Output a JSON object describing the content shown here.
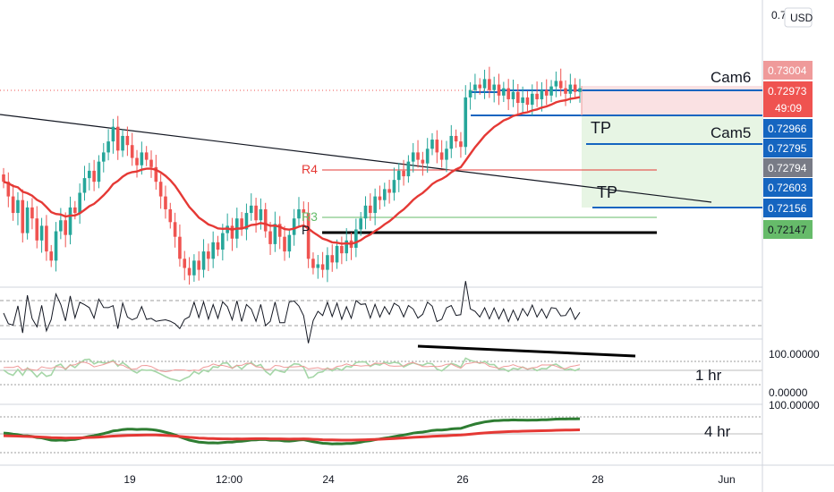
{
  "currency": "USD",
  "top_price_cut": "0.7",
  "chart_data": {
    "type": "line",
    "title": "",
    "x_ticks": [
      "19",
      "12:00",
      "24",
      "26",
      "28",
      "Jun"
    ],
    "price_labels": [
      {
        "value": "0.73004",
        "bg": "#ef9a9a",
        "fg": "#ffffff"
      },
      {
        "value": "0.72973",
        "bg": "#ef5350",
        "fg": "#ffffff",
        "sub": "49:09"
      },
      {
        "value": "0.72966",
        "bg": "#1565c0",
        "fg": "#ffffff"
      },
      {
        "value": "0.72795",
        "bg": "#1565c0",
        "fg": "#ffffff"
      },
      {
        "value": "0.72794",
        "bg": "#787b86",
        "fg": "#ffffff"
      },
      {
        "value": "0.72603",
        "bg": "#1565c0",
        "fg": "#ffffff"
      },
      {
        "value": "0.72156",
        "bg": "#1565c0",
        "fg": "#ffffff"
      },
      {
        "value": "0.72147",
        "bg": "#66bb6a",
        "fg": "#131722"
      }
    ],
    "annotations": [
      "Cam6",
      "Cam5",
      "TP",
      "TP",
      "R4",
      "R3",
      "P"
    ],
    "close": [
      0.7246,
      0.7238,
      0.7229,
      0.7236,
      0.7218,
      0.7232,
      0.7226,
      0.7214,
      0.7222,
      0.7208,
      0.7203,
      0.7219,
      0.7225,
      0.7217,
      0.7232,
      0.7229,
      0.724,
      0.7248,
      0.7252,
      0.7246,
      0.7257,
      0.7262,
      0.7268,
      0.7276,
      0.7263,
      0.7271,
      0.7266,
      0.7259,
      0.7255,
      0.7262,
      0.7258,
      0.7254,
      0.7246,
      0.7238,
      0.7231,
      0.7224,
      0.7216,
      0.7204,
      0.7199,
      0.7195,
      0.7203,
      0.7198,
      0.7208,
      0.7204,
      0.7213,
      0.7209,
      0.7218,
      0.7222,
      0.7215,
      0.7226,
      0.722,
      0.7229,
      0.7233,
      0.7225,
      0.7231,
      0.7219,
      0.7212,
      0.7223,
      0.7216,
      0.7208,
      0.7217,
      0.7226,
      0.7231,
      0.7229,
      0.7204,
      0.7199,
      0.7201,
      0.7198,
      0.7206,
      0.7202,
      0.7211,
      0.7207,
      0.7214,
      0.721,
      0.722,
      0.7226,
      0.7233,
      0.7229,
      0.7238,
      0.7236,
      0.7242,
      0.724,
      0.7247,
      0.7252,
      0.7249,
      0.7257,
      0.7262,
      0.7258,
      0.7256,
      0.7264,
      0.7269,
      0.7262,
      0.7258,
      0.7264,
      0.7271,
      0.7268,
      0.7265,
      0.7292,
      0.7296,
      0.7299,
      0.7297,
      0.7302,
      0.7296,
      0.7299,
      0.7293,
      0.7297,
      0.7291,
      0.7295,
      0.7289,
      0.7292,
      0.7288,
      0.7294,
      0.7291,
      0.7296,
      0.7293,
      0.7298,
      0.7301,
      0.7297,
      0.7294,
      0.7299,
      0.7295,
      0.7297
    ],
    "ema_color": "#e53935",
    "candle_up": "#26a69a",
    "candle_down": "#ef5350",
    "timeframes": [
      "1 hr",
      "4 hr"
    ],
    "osc_levels": [
      "100.00000",
      "0.00000",
      "100.00000"
    ]
  }
}
